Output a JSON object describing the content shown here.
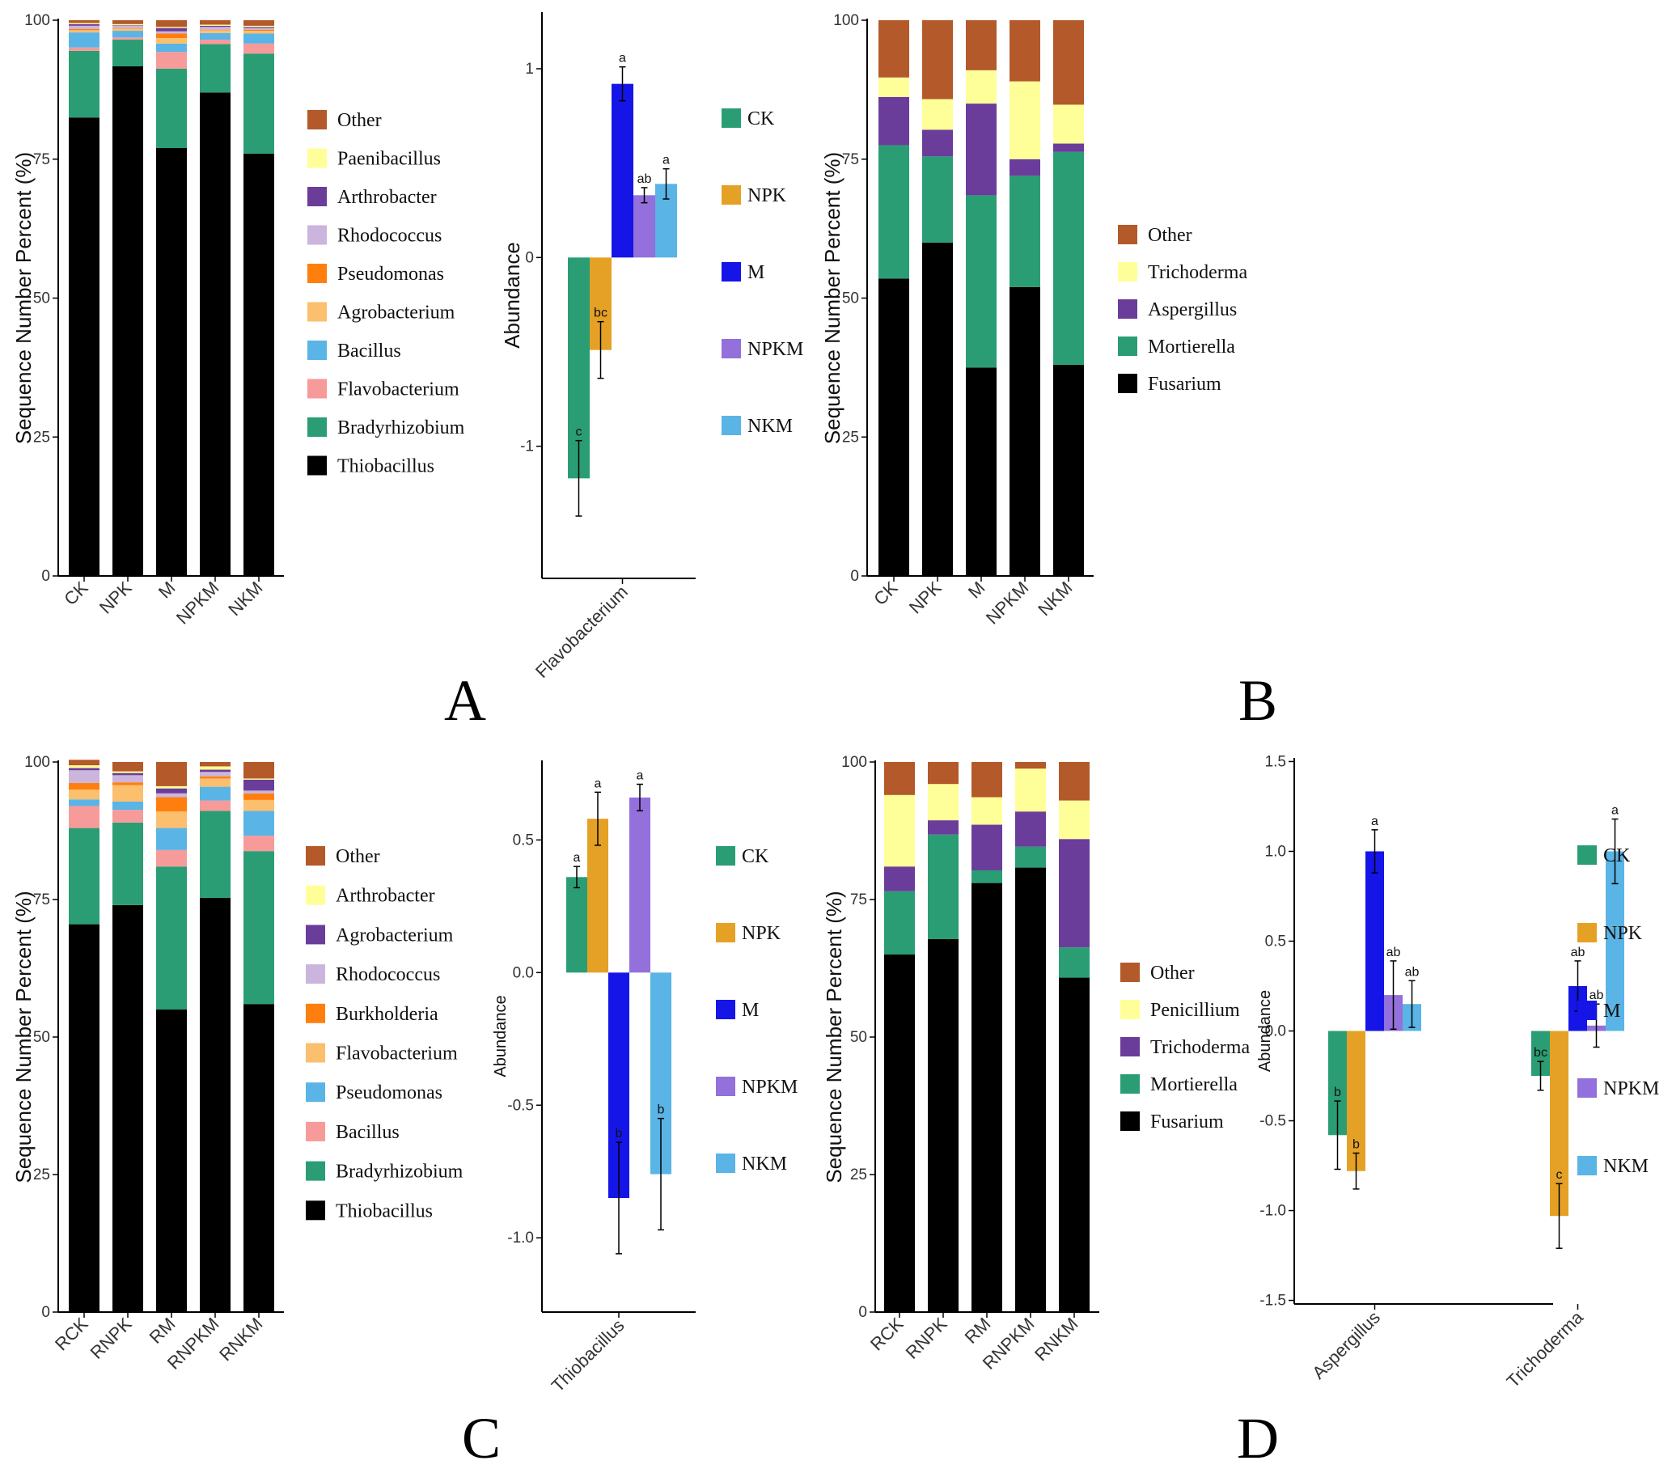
{
  "panels": {
    "A": {
      "letter": "A"
    },
    "B": {
      "letter": "B"
    },
    "C": {
      "letter": "C"
    },
    "D": {
      "letter": "D"
    }
  },
  "chart_data": [
    {
      "id": "A-stack",
      "type": "bar",
      "stacked": true,
      "panel": "A",
      "ylabel": "Sequence Number Percent (%)",
      "ylim": [
        0,
        100
      ],
      "yticks": [
        0,
        25,
        50,
        75,
        100
      ],
      "categories": [
        "CK",
        "NPK",
        "M",
        "NPKM",
        "NKM"
      ],
      "series": [
        {
          "name": "Thiobacillus",
          "color": "#000000",
          "values": [
            82.5,
            91.7,
            77,
            87,
            76
          ]
        },
        {
          "name": "Bradyrhizobium",
          "color": "#2a9d74",
          "values": [
            12,
            4.8,
            14.3,
            8.7,
            18
          ]
        },
        {
          "name": "Flavobacterium",
          "color": "#f79a9a",
          "values": [
            0.6,
            0.4,
            3,
            0.8,
            1.8
          ]
        },
        {
          "name": "Bacillus",
          "color": "#5ab4e5",
          "values": [
            2.7,
            1.2,
            1.5,
            1.2,
            1.8
          ]
        },
        {
          "name": "Agrobacterium",
          "color": "#fbbf6e",
          "values": [
            0.4,
            0.4,
            1,
            0.5,
            0.5
          ]
        },
        {
          "name": "Pseudomonas",
          "color": "#ff7f0e",
          "values": [
            0.2,
            0.1,
            0.8,
            0.1,
            0.2
          ]
        },
        {
          "name": "Rhodococcus",
          "color": "#cbb5dc",
          "values": [
            0.6,
            0.4,
            0.4,
            0.5,
            0.3
          ]
        },
        {
          "name": "Arthrobacter",
          "color": "#6a3d9a",
          "values": [
            0.3,
            0.1,
            0.6,
            0.2,
            0.2
          ]
        },
        {
          "name": "Paenibacillus",
          "color": "#ffff99",
          "values": [
            0.2,
            0.2,
            0.2,
            0.2,
            0.2
          ]
        },
        {
          "name": "Other",
          "color": "#b3592a",
          "values": [
            0.5,
            0.7,
            1.2,
            0.8,
            1
          ]
        }
      ],
      "legend_order": [
        "Other",
        "Paenibacillus",
        "Arthrobacter",
        "Rhodococcus",
        "Pseudomonas",
        "Agrobacterium",
        "Bacillus",
        "Flavobacterium",
        "Bradyrhizobium",
        "Thiobacillus"
      ]
    },
    {
      "id": "A-diff",
      "type": "bar",
      "panel": "A",
      "ylabel": "Abundance",
      "ylim": [
        -1.7,
        1.3
      ],
      "yticks": [
        -1,
        0,
        1
      ],
      "ytick_labels": [
        "-1",
        "0",
        "1"
      ],
      "categories": [
        "Flavobacterium"
      ],
      "series": [
        {
          "name": "CK",
          "color": "#2a9d74",
          "values": [
            -1.17
          ],
          "err": [
            0.2
          ],
          "sig": [
            "c"
          ]
        },
        {
          "name": "NPK",
          "color": "#e5a125",
          "values": [
            -0.49
          ],
          "err": [
            0.15
          ],
          "sig": [
            "bc"
          ]
        },
        {
          "name": "M",
          "color": "#1515e8",
          "values": [
            0.92
          ],
          "err": [
            0.09
          ],
          "sig": [
            "a"
          ]
        },
        {
          "name": "NPKM",
          "color": "#9370db",
          "values": [
            0.33
          ],
          "err": [
            0.04
          ],
          "sig": [
            "ab"
          ]
        },
        {
          "name": "NKM",
          "color": "#5ab4e5",
          "values": [
            0.39
          ],
          "err": [
            0.08
          ],
          "sig": [
            "a"
          ]
        }
      ]
    },
    {
      "id": "B-stack",
      "type": "bar",
      "stacked": true,
      "panel": "B",
      "ylabel": "Sequence Number Percent (%)",
      "ylim": [
        0,
        100
      ],
      "yticks": [
        0,
        25,
        50,
        75,
        100
      ],
      "categories": [
        "CK",
        "NPK",
        "M",
        "NPKM",
        "NKM"
      ],
      "series": [
        {
          "name": "Fusarium",
          "color": "#000000",
          "values": [
            53.5,
            60,
            37.5,
            52,
            38
          ]
        },
        {
          "name": "Mortierella",
          "color": "#2a9d74",
          "values": [
            24,
            15.5,
            31,
            20,
            38.3
          ]
        },
        {
          "name": "Aspergillus",
          "color": "#6a3d9a",
          "values": [
            8.7,
            4.8,
            16.5,
            3,
            1.5
          ]
        },
        {
          "name": "Trichoderma",
          "color": "#ffff99",
          "values": [
            3.5,
            5.5,
            6,
            14,
            7
          ]
        },
        {
          "name": "Other",
          "color": "#b3592a",
          "values": [
            10.3,
            14.2,
            9,
            11,
            15.2
          ]
        }
      ],
      "legend_order": [
        "Other",
        "Trichoderma",
        "Aspergillus",
        "Mortierella",
        "Fusarium"
      ]
    },
    {
      "id": "C-stack",
      "type": "bar",
      "stacked": true,
      "panel": "C",
      "ylabel": "Sequence Number Percent (%)",
      "ylim": [
        0,
        100
      ],
      "yticks": [
        0,
        25,
        50,
        75,
        100
      ],
      "categories": [
        "RCK",
        "RNPK",
        "RM",
        "RNPKM",
        "RNKM"
      ],
      "series": [
        {
          "name": "Thiobacillus",
          "color": "#000000",
          "values": [
            70.5,
            74,
            55,
            75.3,
            56
          ]
        },
        {
          "name": "Bradyrhizobium",
          "color": "#2a9d74",
          "values": [
            17.5,
            15,
            26,
            15.8,
            27.8
          ]
        },
        {
          "name": "Bacillus",
          "color": "#f79a9a",
          "values": [
            4,
            2.3,
            3,
            1.9,
            2.8
          ]
        },
        {
          "name": "Pseudomonas",
          "color": "#5ab4e5",
          "values": [
            1.2,
            1.5,
            4,
            2.5,
            4.5
          ]
        },
        {
          "name": "Flavobacterium",
          "color": "#fbbf6e",
          "values": [
            1.8,
            3,
            3,
            1.5,
            2
          ]
        },
        {
          "name": "Burkholderia",
          "color": "#ff7f0e",
          "values": [
            1.2,
            0.5,
            2.6,
            0.4,
            1.2
          ]
        },
        {
          "name": "Rhodococcus",
          "color": "#cbb5dc",
          "values": [
            2.3,
            1.3,
            0.7,
            0.8,
            0.5
          ]
        },
        {
          "name": "Agrobacterium",
          "color": "#6a3d9a",
          "values": [
            0.4,
            0.4,
            0.9,
            0.4,
            2
          ]
        },
        {
          "name": "Arthrobacter",
          "color": "#ffff99",
          "values": [
            0.5,
            0.3,
            0.4,
            0.6,
            0.2
          ]
        },
        {
          "name": "Other",
          "color": "#b3592a",
          "values": [
            1,
            1.7,
            4.4,
            0.8,
            3
          ]
        }
      ],
      "legend_order": [
        "Other",
        "Arthrobacter",
        "Agrobacterium",
        "Rhodococcus",
        "Burkholderia",
        "Flavobacterium",
        "Pseudomonas",
        "Bacillus",
        "Bradyrhizobium",
        "Thiobacillus"
      ]
    },
    {
      "id": "C-diff",
      "type": "bar",
      "panel": "C",
      "ylabel": "Abundance",
      "ylim": [
        -1.28,
        0.8
      ],
      "yticks": [
        -1,
        -0.5,
        0,
        0.5
      ],
      "ytick_labels": [
        "-1.0",
        "-0.5",
        "0.0",
        "0.5"
      ],
      "categories": [
        "Thiobacillus"
      ],
      "series": [
        {
          "name": "CK",
          "color": "#2a9d74",
          "values": [
            0.36
          ],
          "err": [
            0.04
          ],
          "sig": [
            "a"
          ]
        },
        {
          "name": "NPK",
          "color": "#e5a125",
          "values": [
            0.58
          ],
          "err": [
            0.1
          ],
          "sig": [
            "a"
          ]
        },
        {
          "name": "M",
          "color": "#1515e8",
          "values": [
            -0.85
          ],
          "err": [
            0.21
          ],
          "sig": [
            "b"
          ]
        },
        {
          "name": "NPKM",
          "color": "#9370db",
          "values": [
            0.66
          ],
          "err": [
            0.05
          ],
          "sig": [
            "a"
          ]
        },
        {
          "name": "NKM",
          "color": "#5ab4e5",
          "values": [
            -0.76
          ],
          "err": [
            0.21
          ],
          "sig": [
            "b"
          ]
        }
      ]
    },
    {
      "id": "D-stack",
      "type": "bar",
      "stacked": true,
      "panel": "D",
      "ylabel": "Sequence Number Percent (%)",
      "ylim": [
        0,
        100
      ],
      "yticks": [
        0,
        25,
        50,
        75,
        100
      ],
      "categories": [
        "RCK",
        "RNPK",
        "RM",
        "RNPKM",
        "RNKM"
      ],
      "series": [
        {
          "name": "Fusarium",
          "color": "#000000",
          "values": [
            65,
            67.8,
            78,
            80.8,
            60.8
          ]
        },
        {
          "name": "Mortierella",
          "color": "#2a9d74",
          "values": [
            11.5,
            19,
            2.3,
            3.8,
            5.5
          ]
        },
        {
          "name": "Trichoderma",
          "color": "#6a3d9a",
          "values": [
            4.5,
            2.6,
            8.3,
            6.4,
            19.7
          ]
        },
        {
          "name": "Penicillium",
          "color": "#ffff99",
          "values": [
            13,
            6.6,
            5,
            7.8,
            7
          ]
        },
        {
          "name": "Other",
          "color": "#b3592a",
          "values": [
            6,
            4,
            6.4,
            1.2,
            7
          ]
        }
      ],
      "legend_order": [
        "Other",
        "Penicillium",
        "Trichoderma",
        "Mortierella",
        "Fusarium"
      ]
    },
    {
      "id": "D-diff",
      "type": "bar",
      "panel": "D",
      "ylabel": "Abundance",
      "ylim": [
        -1.52,
        1.52
      ],
      "yticks": [
        -1.5,
        -1,
        -0.5,
        0,
        0.5,
        1,
        1.5
      ],
      "ytick_labels": [
        "-1.5",
        "-1.0",
        "-0.5",
        "0.0",
        "0.5",
        "1.0",
        "1.5"
      ],
      "categories": [
        "Aspergillus",
        "Trichoderma"
      ],
      "series": [
        {
          "name": "CK",
          "color": "#2a9d74",
          "values": [
            -0.58,
            -0.25
          ],
          "err": [
            0.19,
            0.08
          ],
          "sig": [
            "b",
            "bc"
          ]
        },
        {
          "name": "NPK",
          "color": "#e5a125",
          "values": [
            -0.78,
            -1.03
          ],
          "err": [
            0.1,
            0.18
          ],
          "sig": [
            "b",
            "c"
          ]
        },
        {
          "name": "M",
          "color": "#1515e8",
          "values": [
            1.0,
            0.25
          ],
          "err": [
            0.12,
            0.14
          ],
          "sig": [
            "a",
            "ab"
          ]
        },
        {
          "name": "NPKM",
          "color": "#9370db",
          "values": [
            0.2,
            0.03
          ],
          "err": [
            0.19,
            0.12
          ],
          "sig": [
            "ab",
            "ab"
          ]
        },
        {
          "name": "NKM",
          "color": "#5ab4e5",
          "values": [
            0.15,
            1.0
          ],
          "err": [
            0.13,
            0.18
          ],
          "sig": [
            "ab",
            "a"
          ]
        }
      ]
    }
  ]
}
